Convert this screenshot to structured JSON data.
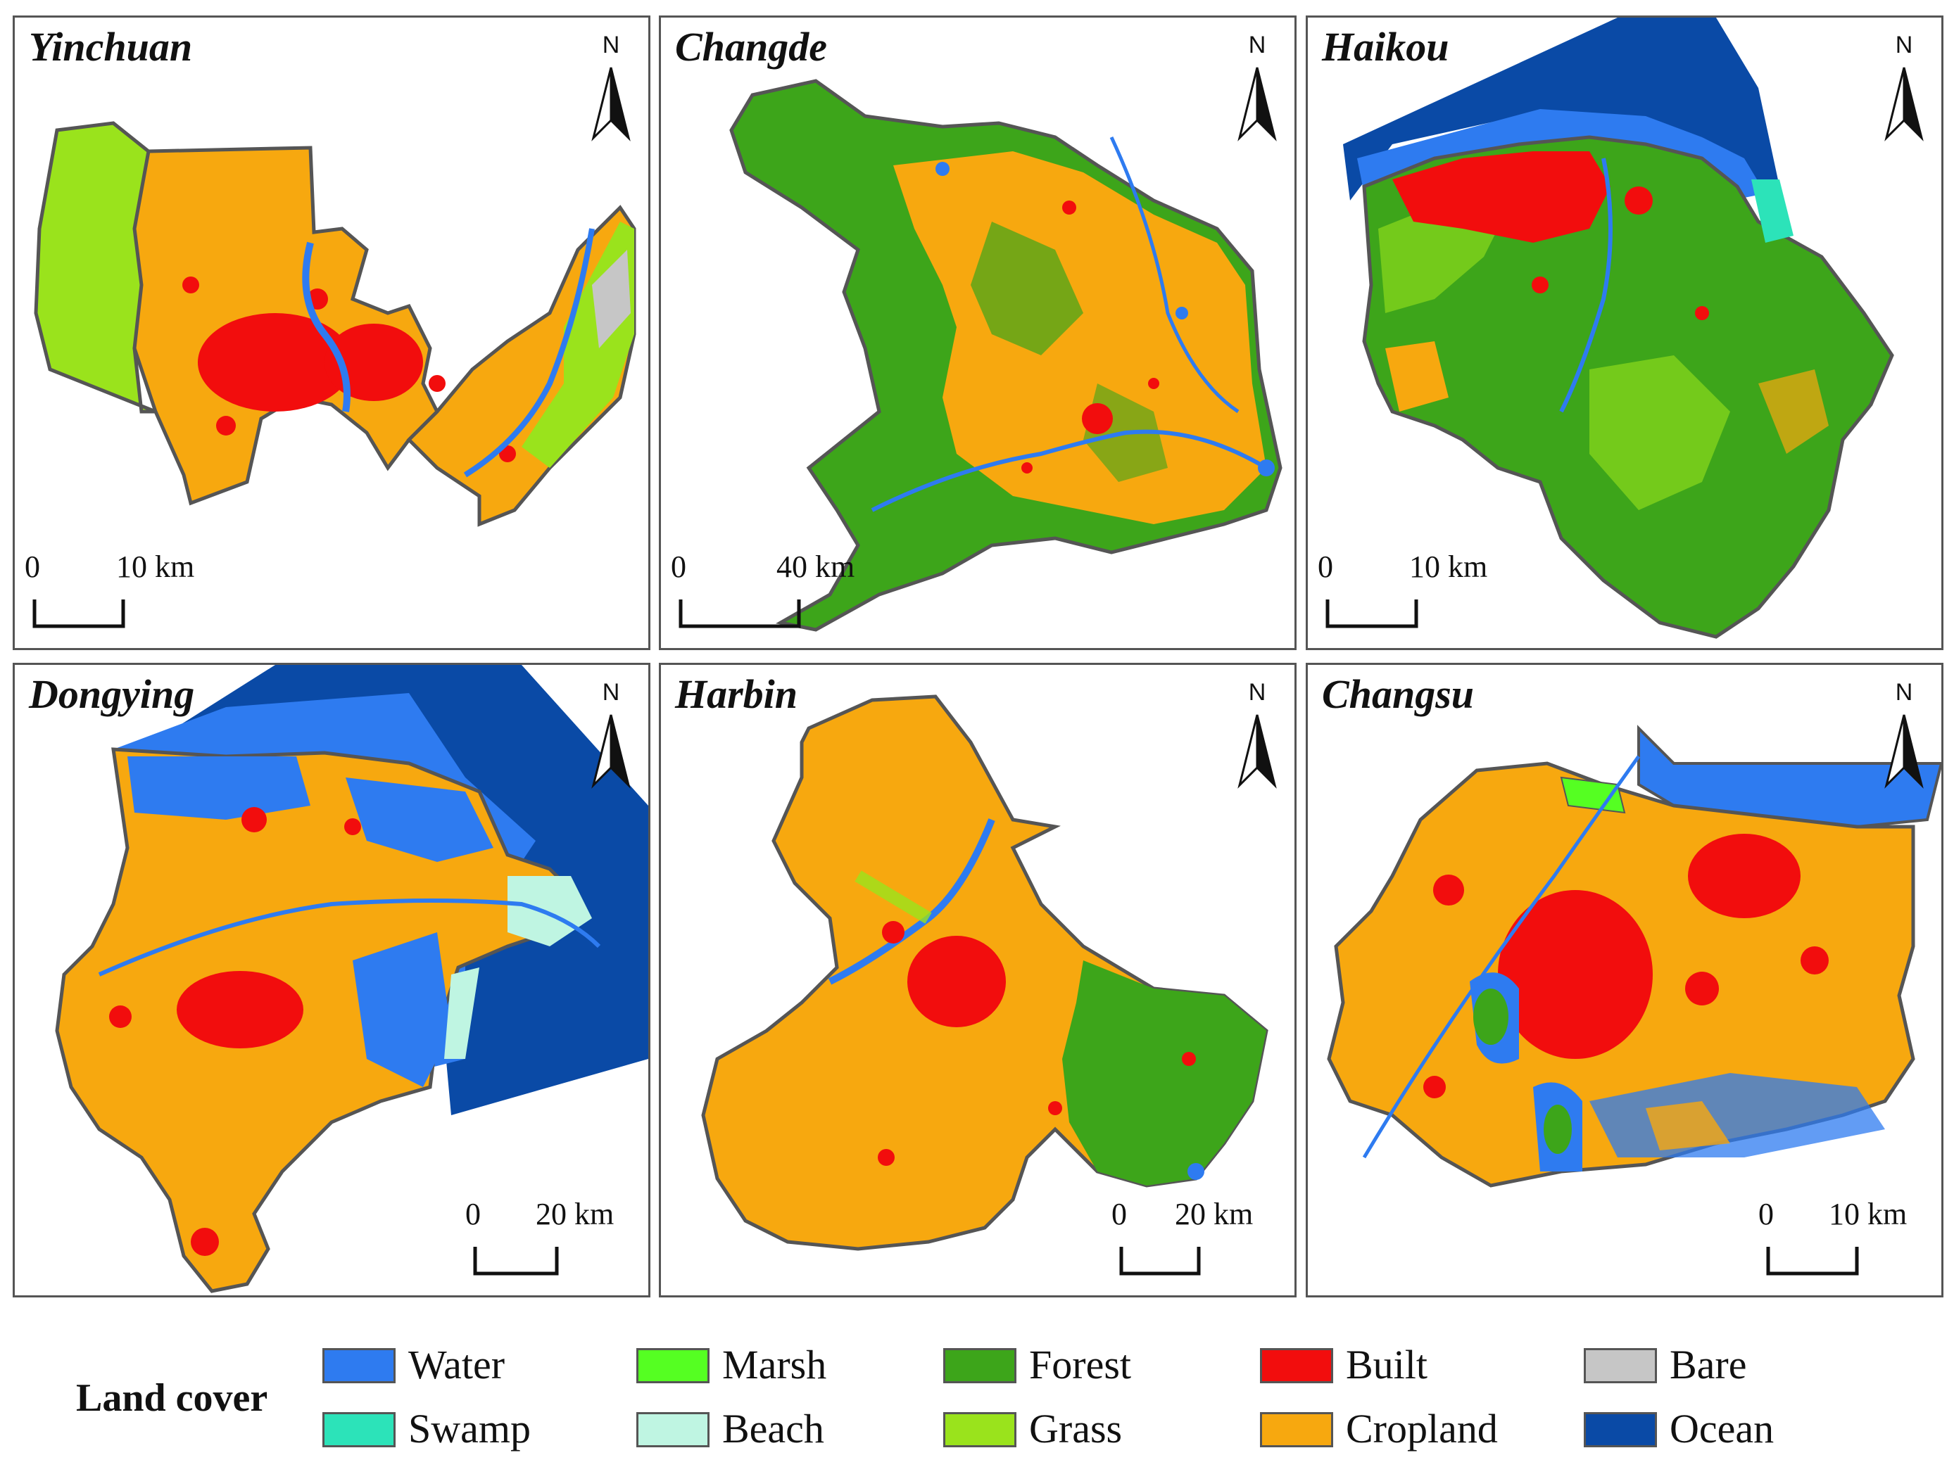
{
  "colors": {
    "water": "#2E7BF0",
    "marsh": "#55FF22",
    "forest": "#3DA51A",
    "built": "#F20D0D",
    "bare": "#C6C6C6",
    "swamp": "#2CE3B9",
    "beach": "#BFF5E2",
    "grass": "#9AE31C",
    "cropland": "#F7A80F",
    "ocean": "#0A4AA6",
    "border": "#555555"
  },
  "panels": [
    {
      "name": "Yinchuan",
      "scale_start": "0",
      "scale_end": "10 km"
    },
    {
      "name": "Changde",
      "scale_start": "0",
      "scale_end": "40 km"
    },
    {
      "name": "Haikou",
      "scale_start": "0",
      "scale_end": "10 km"
    },
    {
      "name": "Dongying",
      "scale_start": "0",
      "scale_end": "20 km"
    },
    {
      "name": "Harbin",
      "scale_start": "0",
      "scale_end": "20 km"
    },
    {
      "name": "Changsu",
      "scale_start": "0",
      "scale_end": "10 km"
    }
  ],
  "north_label": "N",
  "legend": {
    "title": "Land cover",
    "items": [
      {
        "label": "Water",
        "color": "#2E7BF0"
      },
      {
        "label": "Marsh",
        "color": "#55FF22"
      },
      {
        "label": "Forest",
        "color": "#3DA51A"
      },
      {
        "label": "Built",
        "color": "#F20D0D"
      },
      {
        "label": "Bare",
        "color": "#C6C6C6"
      },
      {
        "label": "Swamp",
        "color": "#2CE3B9"
      },
      {
        "label": "Beach",
        "color": "#BFF5E2"
      },
      {
        "label": "Grass",
        "color": "#9AE31C"
      },
      {
        "label": "Cropland",
        "color": "#F7A80F"
      },
      {
        "label": "Ocean",
        "color": "#0A4AA6"
      }
    ]
  }
}
